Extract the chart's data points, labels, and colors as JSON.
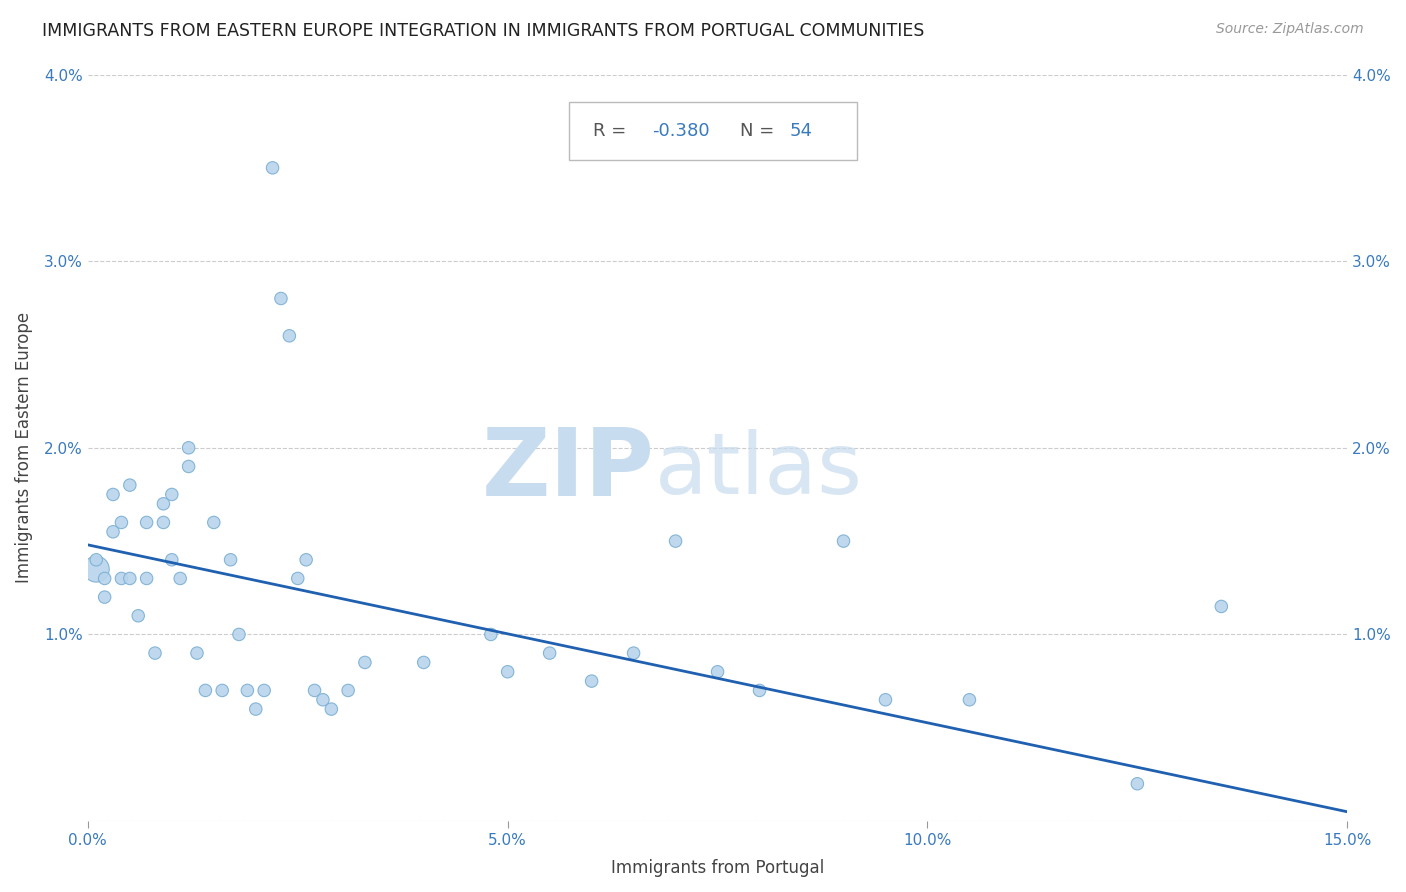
{
  "title": "IMMIGRANTS FROM EASTERN EUROPE INTEGRATION IN IMMIGRANTS FROM PORTUGAL COMMUNITIES",
  "source": "Source: ZipAtlas.com",
  "xlabel": "Immigrants from Portugal",
  "ylabel": "Immigrants from Eastern Europe",
  "R": -0.38,
  "N": 54,
  "xlim": [
    0,
    0.15
  ],
  "ylim": [
    0,
    0.04
  ],
  "scatter_color": "#b8d4ec",
  "scatter_edgecolor": "#7aafd4",
  "line_color": "#2060b0",
  "background_color": "#ffffff",
  "scatter_x": [
    0.001,
    0.001,
    0.002,
    0.002,
    0.003,
    0.003,
    0.004,
    0.004,
    0.005,
    0.005,
    0.006,
    0.007,
    0.007,
    0.008,
    0.009,
    0.009,
    0.01,
    0.01,
    0.011,
    0.012,
    0.012,
    0.013,
    0.014,
    0.015,
    0.016,
    0.017,
    0.018,
    0.019,
    0.02,
    0.021,
    0.022,
    0.023,
    0.024,
    0.025,
    0.026,
    0.027,
    0.028,
    0.029,
    0.031,
    0.033,
    0.04,
    0.048,
    0.05,
    0.055,
    0.06,
    0.065,
    0.07,
    0.075,
    0.08,
    0.09,
    0.095,
    0.105,
    0.125,
    0.135
  ],
  "scatter_y": [
    0.0135,
    0.014,
    0.013,
    0.012,
    0.0175,
    0.0155,
    0.013,
    0.016,
    0.018,
    0.013,
    0.011,
    0.016,
    0.013,
    0.009,
    0.017,
    0.016,
    0.0175,
    0.014,
    0.013,
    0.02,
    0.019,
    0.009,
    0.007,
    0.016,
    0.007,
    0.014,
    0.01,
    0.007,
    0.006,
    0.007,
    0.035,
    0.028,
    0.026,
    0.013,
    0.014,
    0.007,
    0.0065,
    0.006,
    0.007,
    0.0085,
    0.0085,
    0.01,
    0.008,
    0.009,
    0.0075,
    0.009,
    0.015,
    0.008,
    0.007,
    0.015,
    0.0065,
    0.0065,
    0.002,
    0.0115
  ],
  "scatter_sizes": [
    350,
    80,
    80,
    80,
    80,
    80,
    80,
    80,
    80,
    80,
    80,
    80,
    80,
    80,
    80,
    80,
    80,
    80,
    80,
    80,
    80,
    80,
    80,
    80,
    80,
    80,
    80,
    80,
    80,
    80,
    80,
    80,
    80,
    80,
    80,
    80,
    80,
    80,
    80,
    80,
    80,
    80,
    80,
    80,
    80,
    80,
    80,
    80,
    80,
    80,
    80,
    80,
    80,
    80
  ],
  "line_x0": 0.0,
  "line_y0": 0.0148,
  "line_x1": 0.15,
  "line_y1": 0.0005
}
